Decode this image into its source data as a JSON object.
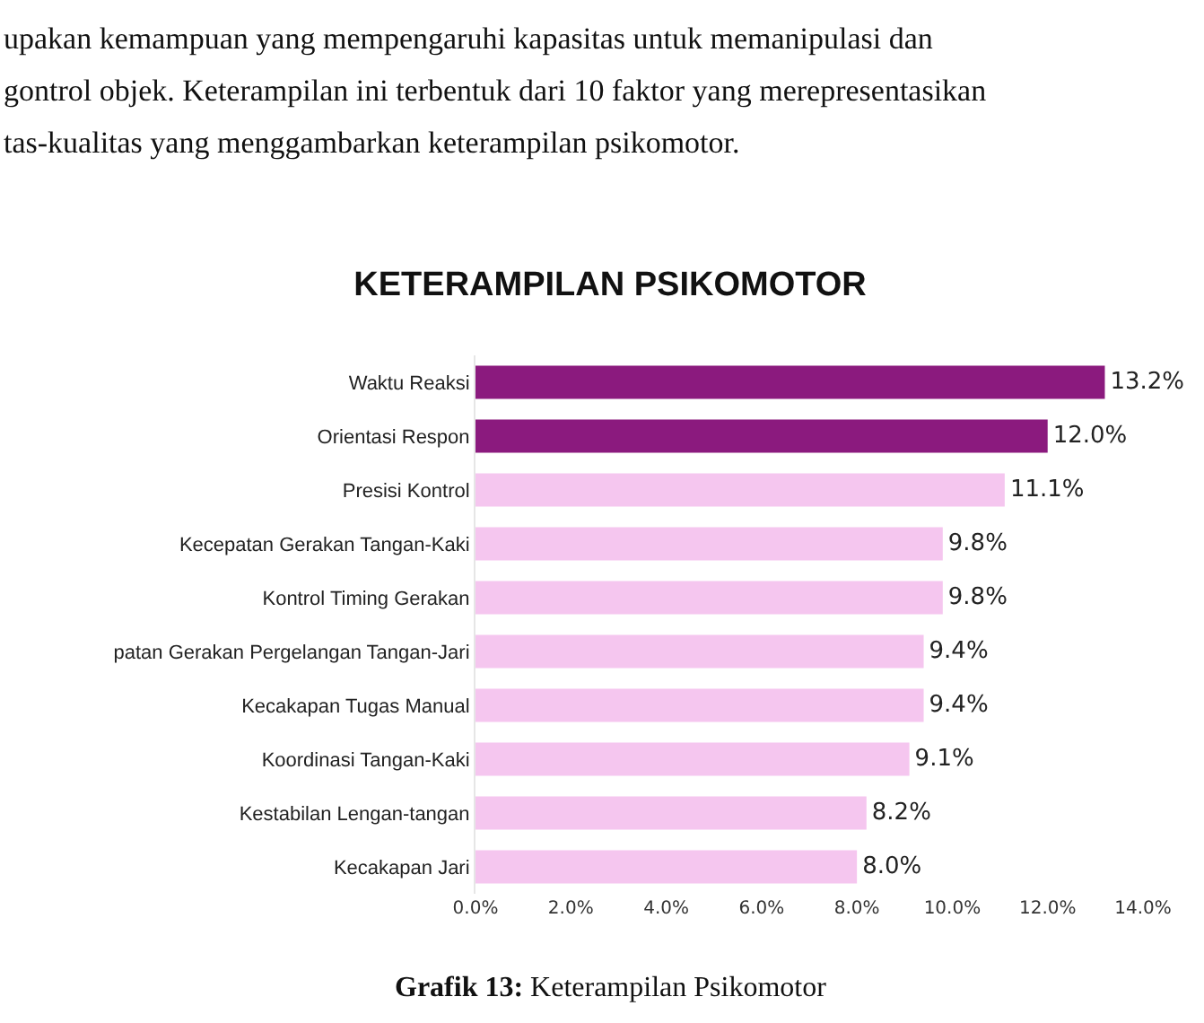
{
  "chart_data": {
    "type": "bar",
    "orientation": "horizontal",
    "title": "KETERAMPILAN PSIKOMOTOR",
    "categories": [
      "Waktu Reaksi",
      "Orientasi Respon",
      "Presisi Kontrol",
      "Kecepatan Gerakan Tangan-Kaki",
      "Kontrol Timing Gerakan",
      "patan Gerakan Pergelangan Tangan-Jari",
      "Kecakapan Tugas Manual",
      "Koordinasi Tangan-Kaki",
      "Kestabilan Lengan-tangan",
      "Kecakapan Jari"
    ],
    "values": [
      13.2,
      12.0,
      11.1,
      9.8,
      9.8,
      9.4,
      9.4,
      9.1,
      8.2,
      8.0
    ],
    "value_labels": [
      "13.2%",
      "12.0%",
      "11.1%",
      "9.8%",
      "9.8%",
      "9.4%",
      "9.4%",
      "9.1%",
      "8.2%",
      "8.0%"
    ],
    "colors": [
      "#8b1a7e",
      "#8b1a7e",
      "#f5c6ef",
      "#f5c6ef",
      "#f5c6ef",
      "#f5c6ef",
      "#f5c6ef",
      "#f5c6ef",
      "#f5c6ef",
      "#f5c6ef"
    ],
    "xlim": [
      0,
      14
    ],
    "xticks": [
      {
        "value": 0,
        "label": "0.0%"
      },
      {
        "value": 2,
        "label": "2.0%"
      },
      {
        "value": 4,
        "label": "4.0%"
      },
      {
        "value": 6,
        "label": "6.0%"
      },
      {
        "value": 8,
        "label": "8.0%"
      },
      {
        "value": 10,
        "label": "10.0%"
      },
      {
        "value": 12,
        "label": "12.0%"
      },
      {
        "value": 14,
        "label": "14.0%"
      }
    ],
    "legend": false,
    "annotations": [
      "upakan kemampuan yang mempengaruhi kapasitas untuk memanipulasi dan",
      "gontrol objek. Keterampilan ini terbentuk dari 10 faktor yang merepresentasikan",
      "tas-kualitas yang menggambarkan keterampilan psikomotor.",
      "Grafik 13: Keterampilan Psikomotor"
    ]
  }
}
